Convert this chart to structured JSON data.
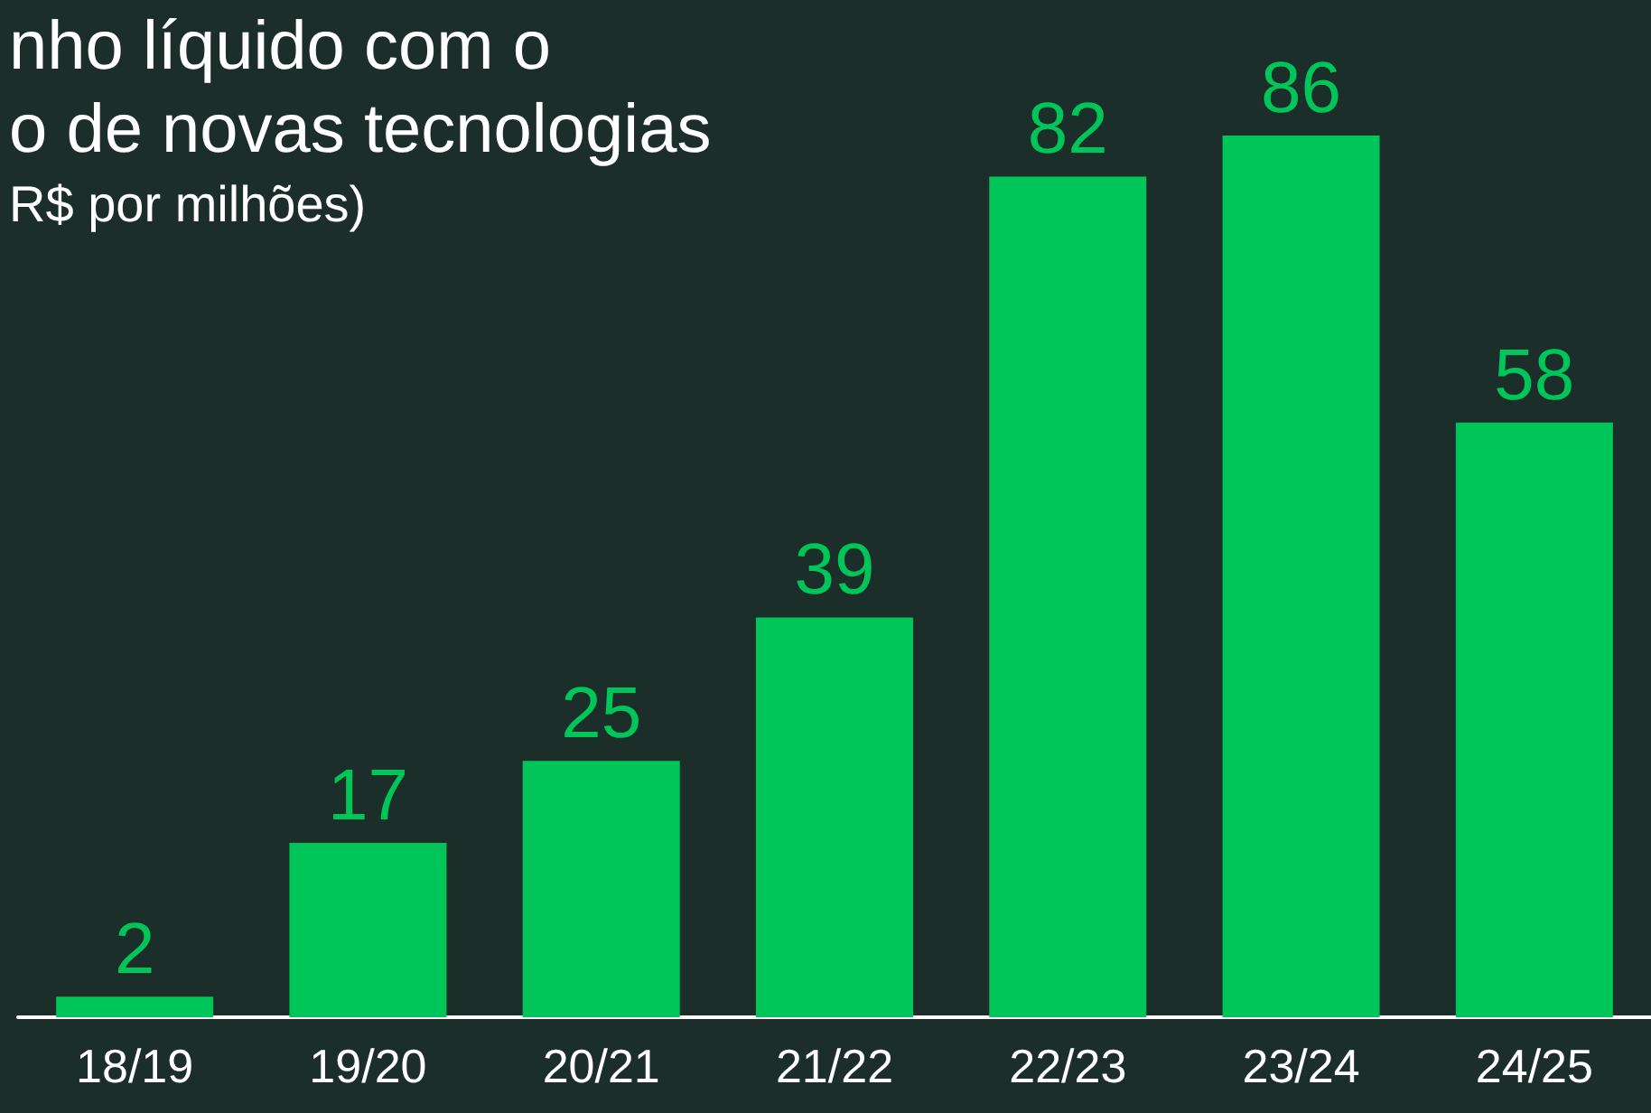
{
  "chart_data": {
    "type": "bar",
    "title": "nho líquido com o\no de novas tecnologias",
    "subtitle": "R$ por milhões)",
    "categories": [
      "18/19",
      "19/20",
      "20/21",
      "21/22",
      "22/23",
      "23/24",
      "24/25"
    ],
    "values": [
      2,
      17,
      25,
      39,
      82,
      86,
      58
    ],
    "color": "#00c65a",
    "data_labels": true
  }
}
